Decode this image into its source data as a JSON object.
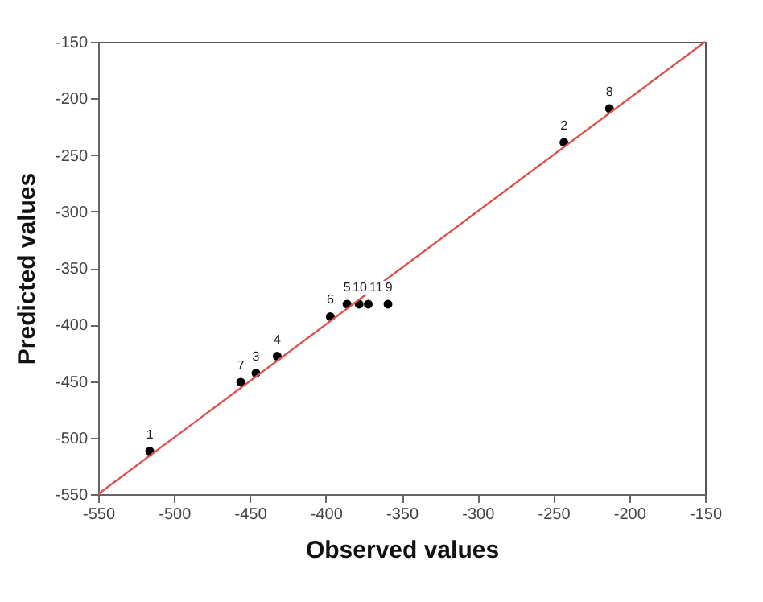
{
  "chart_data": {
    "type": "scatter",
    "xlabel": "Observed values",
    "ylabel": "Predicted values",
    "xlim": [
      -550,
      -150
    ],
    "ylim": [
      -550,
      -150
    ],
    "xticks": [
      -550,
      -500,
      -450,
      -400,
      -350,
      -300,
      -250,
      -200,
      -150
    ],
    "yticks": [
      -550,
      -500,
      -450,
      -400,
      -350,
      -300,
      -250,
      -200,
      -150
    ],
    "grid": false,
    "marker": "circle",
    "x": [
      -516,
      -243,
      -446,
      -432,
      -386,
      -397,
      -456,
      -213,
      -359,
      -378,
      -372
    ],
    "series": [
      {
        "color": "#000000",
        "values": [
          -512,
          -239,
          -443,
          -428,
          -382,
          -393,
          -451,
          -209,
          -382,
          -382,
          -382
        ]
      },
      {
        "type": "line",
        "color": "#d9534f",
        "x": [
          -550,
          -150
        ],
        "values": [
          -550,
          -150
        ],
        "marker": "none"
      }
    ],
    "annotations": [
      {
        "text": "1",
        "x": -516,
        "y": -512
      },
      {
        "text": "2",
        "x": -243,
        "y": -239
      },
      {
        "text": "3",
        "x": -446,
        "y": -443
      },
      {
        "text": "4",
        "x": -432,
        "y": -428
      },
      {
        "text": "5",
        "x": -386,
        "y": -382
      },
      {
        "text": "6",
        "x": -397,
        "y": -393
      },
      {
        "text": "7",
        "x": -456,
        "y": -451
      },
      {
        "text": "8",
        "x": -213,
        "y": -209
      },
      {
        "text": "9",
        "x": -359,
        "y": -382
      },
      {
        "text": "10",
        "x": -378,
        "y": -382
      },
      {
        "text": "11",
        "x": -372,
        "y": -382
      }
    ]
  }
}
